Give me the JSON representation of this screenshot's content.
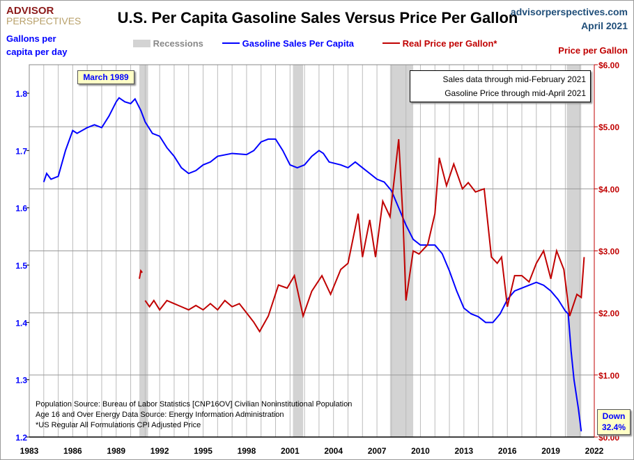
{
  "header": {
    "title": "U.S. Per Capita Gasoline Sales Versus Price Per Gallon",
    "site": "advisorperspectives.com",
    "date": "April 2021",
    "logo_top": "ADVISOR",
    "logo_bottom": "PERSPECTIVES"
  },
  "colors": {
    "sales": "#0000ff",
    "price": "#c00000",
    "recession": "#d3d3d3"
  },
  "chart_data": {
    "type": "line",
    "title": "U.S. Per Capita Gasoline Sales Versus Price Per Gallon",
    "ylabel": "Gallons per capita per day",
    "y2label": "Price per Gallon",
    "xlim": [
      1983,
      2022
    ],
    "ylim": [
      1.2,
      1.8
    ],
    "y2lim": [
      0,
      6
    ],
    "x_ticks": [
      "1983",
      "1986",
      "1989",
      "1992",
      "1995",
      "1998",
      "2001",
      "2004",
      "2007",
      "2010",
      "2013",
      "2016",
      "2019",
      "2022"
    ],
    "y_ticks": [
      "1.2",
      "1.3",
      "1.4",
      "1.5",
      "1.6",
      "1.7",
      "1.8"
    ],
    "y2_ticks": [
      "$0.00",
      "$1.00",
      "$2.00",
      "$3.00",
      "$4.00",
      "$5.00",
      "$6.00"
    ],
    "grid": true,
    "legend": {
      "placement": "top",
      "items": [
        "Recessions",
        "Gasoline Sales Per Capita",
        "Real Price per Gallon*"
      ]
    },
    "recessions": [
      [
        1990.6,
        1991.2
      ],
      [
        2001.2,
        2001.9
      ],
      [
        2007.9,
        2009.5
      ],
      [
        2020.1,
        2021.1
      ]
    ],
    "series": [
      {
        "name": "Gasoline Sales Per Capita",
        "axis": "left",
        "points": [
          [
            1984.0,
            1.645
          ],
          [
            1984.2,
            1.66
          ],
          [
            1984.5,
            1.65
          ],
          [
            1985.0,
            1.655
          ],
          [
            1985.5,
            1.7
          ],
          [
            1986.0,
            1.735
          ],
          [
            1986.3,
            1.73
          ],
          [
            1987.0,
            1.74
          ],
          [
            1987.5,
            1.745
          ],
          [
            1988.0,
            1.74
          ],
          [
            1988.5,
            1.76
          ],
          [
            1989.0,
            1.785
          ],
          [
            1989.2,
            1.792
          ],
          [
            1989.6,
            1.785
          ],
          [
            1990.0,
            1.782
          ],
          [
            1990.3,
            1.79
          ],
          [
            1990.7,
            1.77
          ],
          [
            1991.0,
            1.75
          ],
          [
            1991.5,
            1.73
          ],
          [
            1992.0,
            1.725
          ],
          [
            1992.5,
            1.705
          ],
          [
            1993.0,
            1.69
          ],
          [
            1993.5,
            1.67
          ],
          [
            1994.0,
            1.66
          ],
          [
            1994.5,
            1.665
          ],
          [
            1995.0,
            1.675
          ],
          [
            1995.5,
            1.68
          ],
          [
            1996.0,
            1.69
          ],
          [
            1997.0,
            1.695
          ],
          [
            1998.0,
            1.693
          ],
          [
            1998.5,
            1.7
          ],
          [
            1999.0,
            1.715
          ],
          [
            1999.5,
            1.72
          ],
          [
            2000.0,
            1.72
          ],
          [
            2000.5,
            1.7
          ],
          [
            2001.0,
            1.675
          ],
          [
            2001.5,
            1.67
          ],
          [
            2002.0,
            1.675
          ],
          [
            2002.5,
            1.69
          ],
          [
            2003.0,
            1.7
          ],
          [
            2003.3,
            1.695
          ],
          [
            2003.7,
            1.68
          ],
          [
            2004.5,
            1.675
          ],
          [
            2005.0,
            1.67
          ],
          [
            2005.5,
            1.68
          ],
          [
            2006.0,
            1.67
          ],
          [
            2006.5,
            1.66
          ],
          [
            2007.0,
            1.65
          ],
          [
            2007.5,
            1.645
          ],
          [
            2008.0,
            1.63
          ],
          [
            2008.5,
            1.6
          ],
          [
            2009.0,
            1.57
          ],
          [
            2009.5,
            1.545
          ],
          [
            2010.0,
            1.535
          ],
          [
            2011.0,
            1.535
          ],
          [
            2011.5,
            1.52
          ],
          [
            2012.0,
            1.49
          ],
          [
            2012.5,
            1.455
          ],
          [
            2013.0,
            1.425
          ],
          [
            2013.5,
            1.415
          ],
          [
            2014.0,
            1.41
          ],
          [
            2014.5,
            1.4
          ],
          [
            2015.0,
            1.4
          ],
          [
            2015.5,
            1.415
          ],
          [
            2016.0,
            1.44
          ],
          [
            2016.5,
            1.455
          ],
          [
            2017.0,
            1.46
          ],
          [
            2017.5,
            1.465
          ],
          [
            2018.0,
            1.47
          ],
          [
            2018.5,
            1.465
          ],
          [
            2019.0,
            1.455
          ],
          [
            2019.5,
            1.44
          ],
          [
            2020.0,
            1.42
          ],
          [
            2020.2,
            1.415
          ],
          [
            2020.4,
            1.35
          ],
          [
            2020.6,
            1.3
          ],
          [
            2020.9,
            1.25
          ],
          [
            2021.1,
            1.21
          ]
        ]
      },
      {
        "name": "Real Price per Gallon*",
        "axis": "right",
        "segments": [
          [
            [
              1990.6,
              2.55
            ],
            [
              1990.7,
              2.68
            ],
            [
              1990.8,
              2.65
            ]
          ],
          [
            [
              1991.0,
              2.2
            ],
            [
              1991.3,
              2.1
            ],
            [
              1991.6,
              2.2
            ],
            [
              1992.0,
              2.05
            ],
            [
              1992.5,
              2.2
            ],
            [
              1993.0,
              2.15
            ],
            [
              1993.5,
              2.1
            ],
            [
              1994.0,
              2.05
            ],
            [
              1994.5,
              2.12
            ],
            [
              1995.0,
              2.05
            ],
            [
              1995.5,
              2.15
            ],
            [
              1996.0,
              2.05
            ],
            [
              1996.5,
              2.2
            ],
            [
              1997.0,
              2.1
            ],
            [
              1997.5,
              2.15
            ],
            [
              1998.0,
              2.0
            ],
            [
              1998.5,
              1.85
            ],
            [
              1998.9,
              1.7
            ],
            [
              1999.5,
              1.95
            ],
            [
              2000.2,
              2.45
            ],
            [
              2000.8,
              2.4
            ],
            [
              2001.3,
              2.6
            ],
            [
              2001.9,
              1.95
            ],
            [
              2002.5,
              2.35
            ],
            [
              2003.2,
              2.6
            ],
            [
              2003.8,
              2.3
            ],
            [
              2004.5,
              2.7
            ],
            [
              2005.0,
              2.8
            ],
            [
              2005.7,
              3.6
            ],
            [
              2006.0,
              2.9
            ],
            [
              2006.5,
              3.5
            ],
            [
              2006.9,
              2.9
            ],
            [
              2007.4,
              3.8
            ],
            [
              2007.9,
              3.55
            ],
            [
              2008.5,
              4.8
            ],
            [
              2008.8,
              3.5
            ],
            [
              2009.0,
              2.2
            ],
            [
              2009.5,
              3.0
            ],
            [
              2009.9,
              2.95
            ],
            [
              2010.5,
              3.1
            ],
            [
              2011.0,
              3.6
            ],
            [
              2011.3,
              4.5
            ],
            [
              2011.8,
              4.05
            ],
            [
              2012.3,
              4.4
            ],
            [
              2012.9,
              4.0
            ],
            [
              2013.3,
              4.1
            ],
            [
              2013.8,
              3.95
            ],
            [
              2014.4,
              4.0
            ],
            [
              2014.9,
              2.9
            ],
            [
              2015.3,
              2.8
            ],
            [
              2015.6,
              2.9
            ],
            [
              2016.0,
              2.1
            ],
            [
              2016.5,
              2.6
            ],
            [
              2017.0,
              2.6
            ],
            [
              2017.5,
              2.5
            ],
            [
              2018.0,
              2.8
            ],
            [
              2018.5,
              3.0
            ],
            [
              2019.0,
              2.55
            ],
            [
              2019.4,
              3.0
            ],
            [
              2019.9,
              2.7
            ],
            [
              2020.3,
              1.95
            ],
            [
              2020.8,
              2.3
            ],
            [
              2021.1,
              2.25
            ],
            [
              2021.3,
              2.9
            ]
          ]
        ]
      }
    ],
    "annotations": {
      "peak": "March 1989",
      "down_1": "Down",
      "down_2": "32.4%"
    }
  },
  "infobox": {
    "line1": "Sales data through mid-February 2021",
    "line2": "Gasoline Price through mid-April 2021"
  },
  "notes": [
    "Population Source: Bureau of Labor Statistics [CNP16OV] Civilian Noninstitutional Population",
    "Age 16 and Over Energy Data Source: Energy Information Administration",
    "*US Regular All Formulations CPI Adjusted Price"
  ]
}
